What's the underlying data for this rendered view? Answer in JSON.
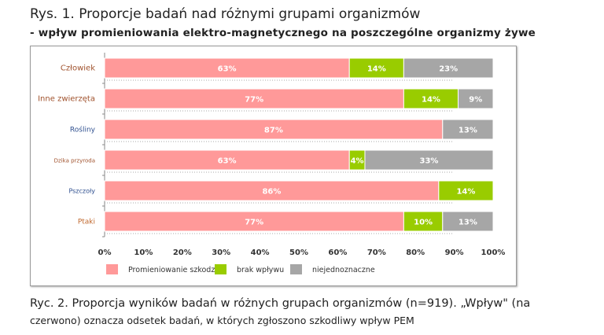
{
  "title": "Rys. 1. Proporcje badań nad różnymi grupami organizmów",
  "subtitle": "- wpływ promieniowania elektro-magnetycznego na poszczególne organizmy żywe",
  "caption_line1": "Ryc. 2. Proporcja wyników badań w różnych grupach organizmów (n=919). „Wpływ\" (na",
  "caption_line2": "czerwono) oznacza odsetek badań, w których zgłoszono szkodliwy wpływ PEM",
  "chart_data": {
    "type": "bar",
    "orientation": "horizontal",
    "stacked": true,
    "categories": [
      "Człowiek",
      "Inne zwierzęta",
      "Rośliny",
      "Dzika przyroda",
      "Pszczoły",
      "Ptaki"
    ],
    "category_colors": [
      "#a0522d",
      "#a0522d",
      "#2e4f8f",
      "#a0522d",
      "#2e4f8f",
      "#c0682d"
    ],
    "series": [
      {
        "name": "Promieniowanie szkodzi",
        "color": "#ff9999",
        "values": [
          63,
          77,
          87,
          63,
          86,
          77
        ]
      },
      {
        "name": "brak wpływu",
        "color": "#99cc00",
        "values": [
          14,
          14,
          0,
          4,
          14,
          10
        ]
      },
      {
        "name": "niejednoznaczne",
        "color": "#a6a6a6",
        "values": [
          23,
          9,
          13,
          33,
          0,
          13
        ]
      }
    ],
    "xlim": [
      0,
      100
    ],
    "xticks": [
      "0%",
      "10%",
      "20%",
      "30%",
      "40%",
      "50%",
      "60%",
      "70%",
      "80%",
      "90%",
      "100%"
    ],
    "legend": "bottom"
  }
}
